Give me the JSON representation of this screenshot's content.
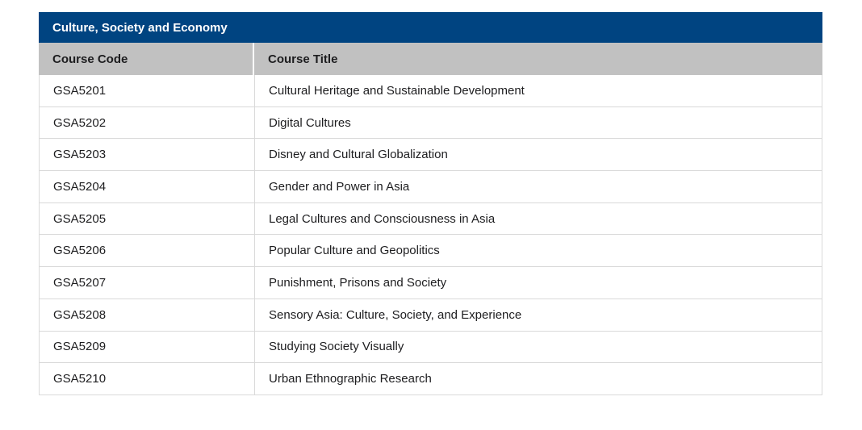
{
  "table": {
    "title": "Culture, Society and Economy",
    "columns": [
      "Course Code",
      "Course Title"
    ],
    "rows": [
      {
        "code": "GSA5201",
        "title": "Cultural Heritage and Sustainable Development"
      },
      {
        "code": "GSA5202",
        "title": "Digital Cultures"
      },
      {
        "code": "GSA5203",
        "title": "Disney and Cultural Globalization"
      },
      {
        "code": "GSA5204",
        "title": "Gender and Power in Asia"
      },
      {
        "code": "GSA5205",
        "title": "Legal Cultures and Consciousness in Asia"
      },
      {
        "code": "GSA5206",
        "title": "Popular Culture and Geopolitics"
      },
      {
        "code": "GSA5207",
        "title": "Punishment, Prisons and Society"
      },
      {
        "code": "GSA5208",
        "title": "Sensory Asia: Culture, Society, and Experience"
      },
      {
        "code": "GSA5209",
        "title": "Studying Society Visually"
      },
      {
        "code": "GSA5210",
        "title": "Urban Ethnographic Research"
      }
    ]
  },
  "colors": {
    "title_bar_bg": "#004481",
    "title_bar_text": "#ffffff",
    "column_header_bg": "#c1c1c1",
    "row_border": "#d9d9d9",
    "text": "#1d1d1f"
  }
}
